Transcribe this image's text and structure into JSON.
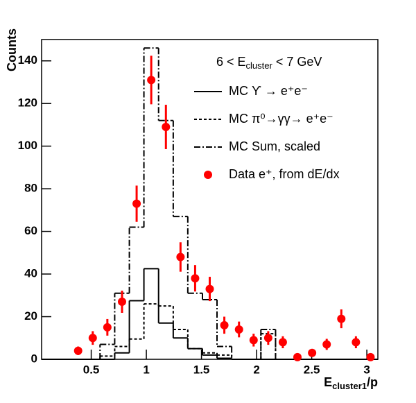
{
  "chart_data": {
    "type": "histogram",
    "annotation": {
      "text": "6 < E",
      "sub": "cluster",
      "after": " < 7 GeV"
    },
    "xlabel": {
      "text": "E",
      "sub": "cluster1",
      "after": "/p"
    },
    "ylabel": "Counts",
    "bins": [
      0.05,
      0.183,
      0.315,
      0.448,
      0.58,
      0.713,
      0.846,
      0.978,
      1.111,
      1.244,
      1.376,
      1.509,
      1.641,
      1.774,
      1.907,
      2.039,
      2.172,
      2.304,
      2.437,
      2.57,
      2.702,
      2.835,
      2.967,
      3.1
    ],
    "series": [
      {
        "name": "MC ϒ → e⁺e⁻",
        "color": "#000000",
        "style": "solid",
        "values": [
          0,
          0,
          0,
          0,
          0,
          3,
          27.5,
          42.5,
          17,
          10,
          5,
          2,
          0.5,
          0,
          0,
          0,
          0,
          0,
          0,
          0,
          0,
          0,
          0
        ]
      },
      {
        "name": "MC π⁰→γγ→ e⁺e⁻",
        "color": "#000000",
        "style": "dashed",
        "values": [
          0,
          0,
          0,
          0,
          1.5,
          6,
          9.5,
          26,
          25,
          14,
          5,
          3,
          2,
          0,
          0,
          12,
          0,
          0,
          0,
          0,
          0,
          0,
          0
        ]
      },
      {
        "name": "MC Sum, scaled",
        "color": "#000000",
        "style": "dashdot",
        "values": [
          0,
          0,
          0,
          0,
          7,
          31,
          62,
          146,
          112,
          67,
          31,
          28,
          6,
          0,
          0,
          14,
          0,
          0,
          0,
          0,
          0,
          0,
          0
        ]
      },
      {
        "name": "Data e⁺, from dE/dx",
        "color": "#ff0000",
        "style": "points",
        "values": [
          null,
          null,
          4,
          10,
          15,
          27,
          73,
          131,
          109,
          48,
          38,
          33,
          16,
          14,
          9,
          10,
          8,
          1,
          3,
          7,
          19,
          8,
          1
        ],
        "errors": [
          null,
          null,
          2,
          3.2,
          3.9,
          5.2,
          8.5,
          11.4,
          10.4,
          6.9,
          6.2,
          5.7,
          4,
          3.7,
          3,
          3.2,
          2.8,
          1,
          1.7,
          2.6,
          4.4,
          2.8,
          1
        ]
      }
    ],
    "xlim": [
      0.05,
      3.1
    ],
    "ylim": [
      0,
      150
    ],
    "xticks": [
      0.5,
      1,
      1.5,
      2,
      2.5,
      3
    ],
    "yticks": [
      0,
      20,
      40,
      60,
      80,
      100,
      120,
      140
    ]
  }
}
